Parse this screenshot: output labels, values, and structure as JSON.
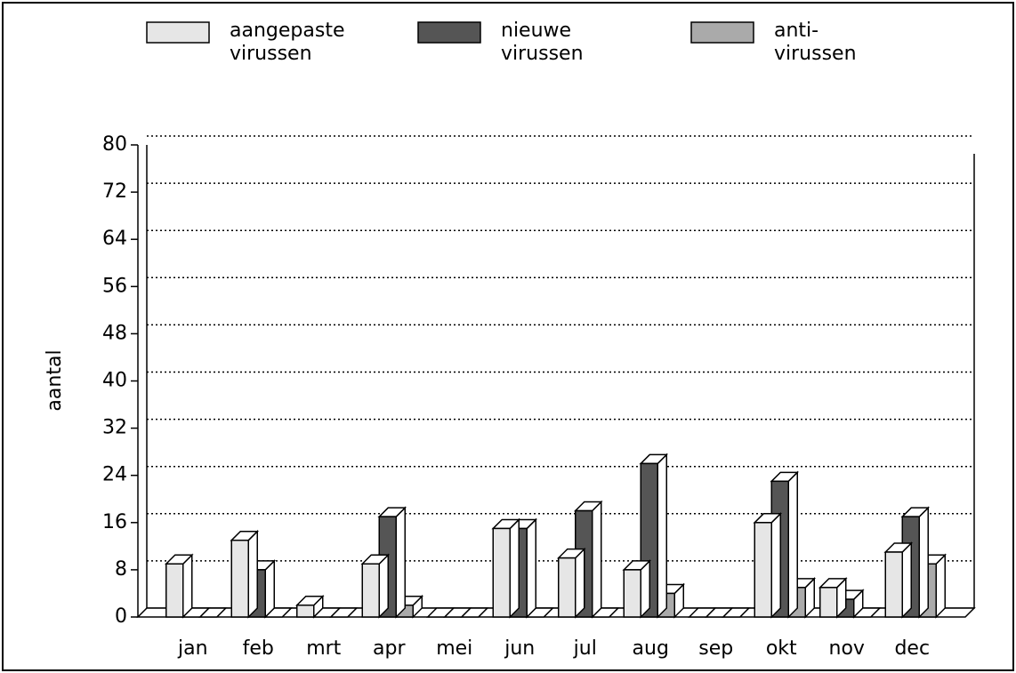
{
  "chart_data": {
    "type": "bar3d",
    "y_label": "aantal",
    "categories": [
      "jan",
      "feb",
      "mrt",
      "apr",
      "mei",
      "jun",
      "jul",
      "aug",
      "sep",
      "okt",
      "nov",
      "dec"
    ],
    "series": [
      {
        "name": "aangepaste virussen",
        "color": "#e6e6e6",
        "values": [
          9,
          13,
          2,
          9,
          0,
          15,
          10,
          8,
          0,
          16,
          5,
          11
        ]
      },
      {
        "name": "nieuwe virussen",
        "color": "#555555",
        "values": [
          0,
          8,
          0,
          17,
          0,
          15,
          18,
          26,
          0,
          23,
          3,
          17
        ]
      },
      {
        "name": "anti-virussen",
        "color": "#aaaaaa",
        "values": [
          0,
          0,
          0,
          2,
          0,
          0,
          0,
          4,
          0,
          5,
          0,
          9
        ]
      }
    ],
    "ylim": [
      0,
      80
    ],
    "yticks": [
      0,
      8,
      16,
      24,
      32,
      40,
      48,
      56,
      64,
      72,
      80
    ],
    "grid": true
  }
}
